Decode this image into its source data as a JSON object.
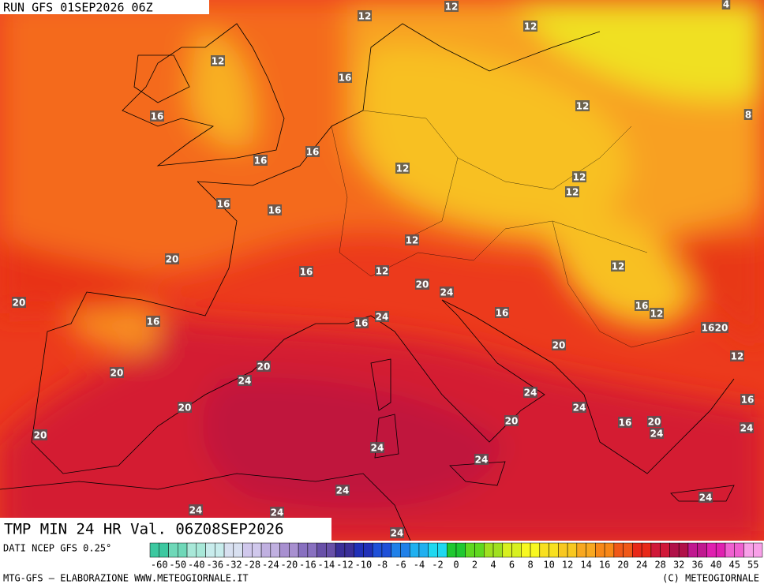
{
  "header": {
    "run": "RUN GFS 01SEP2026 06Z"
  },
  "map": {
    "title": "TMP MIN 24 HR Val. 06Z08SEP2026",
    "contour_labels": [
      12,
      12,
      4,
      12,
      12,
      16,
      12,
      16,
      8,
      16,
      16,
      12,
      12,
      12,
      16,
      16,
      12,
      20,
      16,
      12,
      12,
      20,
      24,
      20,
      16,
      16,
      16,
      12,
      24,
      16,
      16,
      20,
      20,
      12,
      20,
      20,
      24,
      24,
      20,
      24,
      16,
      20,
      16,
      20,
      24,
      24,
      20,
      24,
      24,
      24,
      24,
      24,
      24,
      24
    ]
  },
  "colorbar": {
    "source": "DATI NCEP GFS 0.25°",
    "labels": [
      "-60",
      "-50",
      "-40",
      "-36",
      "-32",
      "-28",
      "-24",
      "-20",
      "-16",
      "-14",
      "-12",
      "-10",
      "-8",
      "-6",
      "-4",
      "-2",
      "0",
      "2",
      "4",
      "6",
      "8",
      "10",
      "12",
      "14",
      "16",
      "20",
      "24",
      "28",
      "32",
      "36",
      "40",
      "45",
      "55"
    ],
    "colors": [
      "#3cc8a0",
      "#6ed8b8",
      "#a8e8d8",
      "#c8ecec",
      "#d8e0f0",
      "#d0c8ec",
      "#c0b0e0",
      "#a890d0",
      "#8870c0",
      "#6850a8",
      "#3a2e98",
      "#2030b8",
      "#1e50d8",
      "#2080e8",
      "#20b0f0",
      "#20d8f0",
      "#20c830",
      "#60d820",
      "#a0e020",
      "#d8f020",
      "#f8f820",
      "#f8e020",
      "#f8c820",
      "#f8a820",
      "#f88818",
      "#f05818",
      "#e82818",
      "#d01838",
      "#b01048",
      "#c01890",
      "#e020b0",
      "#f060d0",
      "#f8a0e8"
    ]
  },
  "footer": {
    "left": "MTG-GFS — ELABORAZIONE WWW.METEOGIORNALE.IT",
    "right": "(C) METEOGIORNALE"
  }
}
